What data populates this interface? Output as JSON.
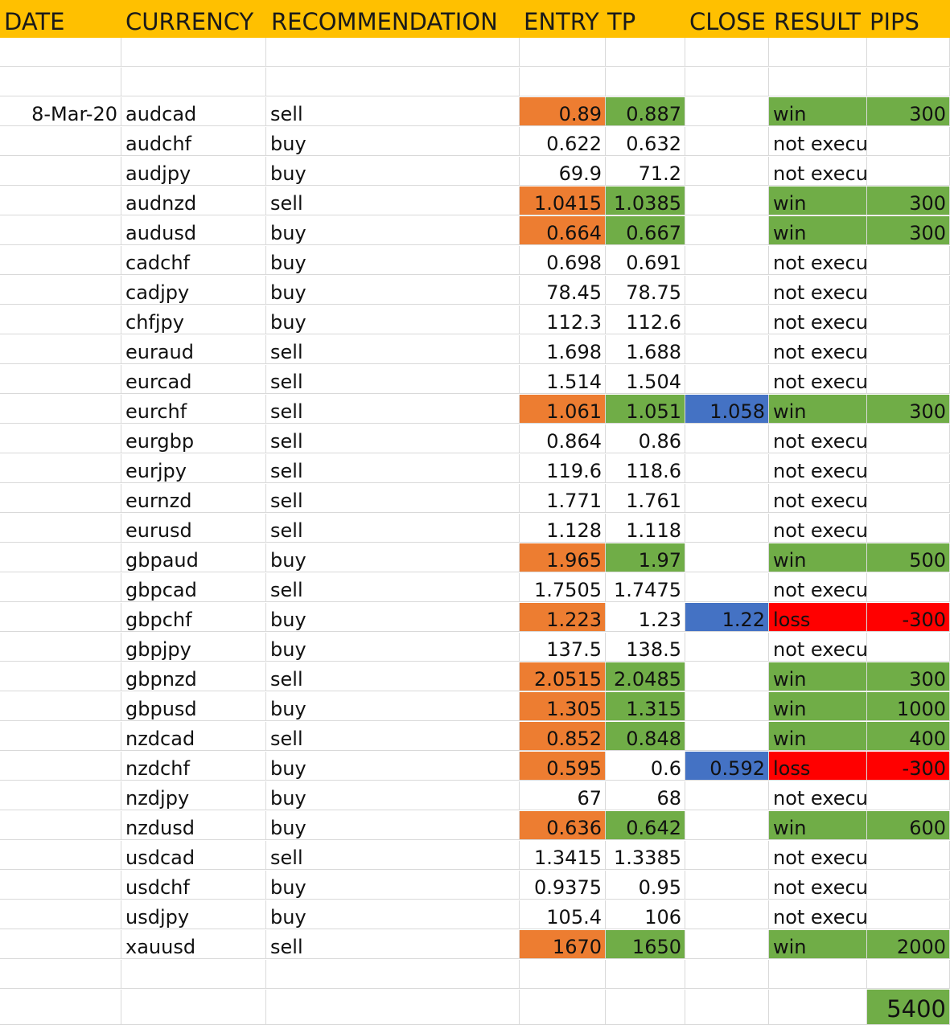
{
  "headers": {
    "date": "DATE",
    "currency": "CURRENCY",
    "recommendation": "RECOMMENDATION",
    "entry": "ENTRY",
    "tp": "TP",
    "close": "CLOSE",
    "result": "RESULT",
    "pips": "PIPS"
  },
  "colors": {
    "header": "#ffc000",
    "entry_fill": "#ed7d31",
    "tp_win_fill": "#70ad47",
    "close_fill": "#4472c4",
    "loss_fill": "#ff0000"
  },
  "trades": [
    {
      "date": "8-Mar-20",
      "currency": "audcad",
      "rec": "sell",
      "entry": "0.89",
      "tp": "0.887",
      "close": "",
      "result": "win",
      "pips": "300"
    },
    {
      "date": "",
      "currency": "audchf",
      "rec": "buy",
      "entry": "0.622",
      "tp": "0.632",
      "close": "",
      "result": "not executed",
      "pips": ""
    },
    {
      "date": "",
      "currency": "audjpy",
      "rec": "buy",
      "entry": "69.9",
      "tp": "71.2",
      "close": "",
      "result": "not executed",
      "pips": ""
    },
    {
      "date": "",
      "currency": "audnzd",
      "rec": "sell",
      "entry": "1.0415",
      "tp": "1.0385",
      "close": "",
      "result": "win",
      "pips": "300"
    },
    {
      "date": "",
      "currency": "audusd",
      "rec": "buy",
      "entry": "0.664",
      "tp": "0.667",
      "close": "",
      "result": "win",
      "pips": "300"
    },
    {
      "date": "",
      "currency": "cadchf",
      "rec": "buy",
      "entry": "0.698",
      "tp": "0.691",
      "close": "",
      "result": "not executed",
      "pips": ""
    },
    {
      "date": "",
      "currency": "cadjpy",
      "rec": "buy",
      "entry": "78.45",
      "tp": "78.75",
      "close": "",
      "result": "not executed",
      "pips": ""
    },
    {
      "date": "",
      "currency": "chfjpy",
      "rec": "buy",
      "entry": "112.3",
      "tp": "112.6",
      "close": "",
      "result": "not executed",
      "pips": ""
    },
    {
      "date": "",
      "currency": "euraud",
      "rec": "sell",
      "entry": "1.698",
      "tp": "1.688",
      "close": "",
      "result": "not executed",
      "pips": ""
    },
    {
      "date": "",
      "currency": "eurcad",
      "rec": "sell",
      "entry": "1.514",
      "tp": "1.504",
      "close": "",
      "result": "not executed",
      "pips": ""
    },
    {
      "date": "",
      "currency": "eurchf",
      "rec": "sell",
      "entry": "1.061",
      "tp": "1.051",
      "close": "1.058",
      "result": "win",
      "pips": "300"
    },
    {
      "date": "",
      "currency": "eurgbp",
      "rec": "sell",
      "entry": "0.864",
      "tp": "0.86",
      "close": "",
      "result": "not executed",
      "pips": ""
    },
    {
      "date": "",
      "currency": "eurjpy",
      "rec": "sell",
      "entry": "119.6",
      "tp": "118.6",
      "close": "",
      "result": "not executed",
      "pips": ""
    },
    {
      "date": "",
      "currency": "eurnzd",
      "rec": "sell",
      "entry": "1.771",
      "tp": "1.761",
      "close": "",
      "result": "not executed",
      "pips": ""
    },
    {
      "date": "",
      "currency": "eurusd",
      "rec": "sell",
      "entry": "1.128",
      "tp": "1.118",
      "close": "",
      "result": "not executed",
      "pips": ""
    },
    {
      "date": "",
      "currency": "gbpaud",
      "rec": "buy",
      "entry": "1.965",
      "tp": "1.97",
      "close": "",
      "result": "win",
      "pips": "500"
    },
    {
      "date": "",
      "currency": "gbpcad",
      "rec": "sell",
      "entry": "1.7505",
      "tp": "1.7475",
      "close": "",
      "result": "not executed",
      "pips": ""
    },
    {
      "date": "",
      "currency": "gbpchf",
      "rec": "buy",
      "entry": "1.223",
      "tp": "1.23",
      "close": "1.22",
      "result": "loss",
      "pips": "-300"
    },
    {
      "date": "",
      "currency": "gbpjpy",
      "rec": "buy",
      "entry": "137.5",
      "tp": "138.5",
      "close": "",
      "result": "not executed",
      "pips": ""
    },
    {
      "date": "",
      "currency": "gbpnzd",
      "rec": "sell",
      "entry": "2.0515",
      "tp": "2.0485",
      "close": "",
      "result": "win",
      "pips": "300"
    },
    {
      "date": "",
      "currency": "gbpusd",
      "rec": "buy",
      "entry": "1.305",
      "tp": "1.315",
      "close": "",
      "result": "win",
      "pips": "1000"
    },
    {
      "date": "",
      "currency": "nzdcad",
      "rec": "sell",
      "entry": "0.852",
      "tp": "0.848",
      "close": "",
      "result": "win",
      "pips": "400"
    },
    {
      "date": "",
      "currency": "nzdchf",
      "rec": "buy",
      "entry": "0.595",
      "tp": "0.6",
      "close": "0.592",
      "result": "loss",
      "pips": "-300"
    },
    {
      "date": "",
      "currency": "nzdjpy",
      "rec": "buy",
      "entry": "67",
      "tp": "68",
      "close": "",
      "result": "not executed",
      "pips": ""
    },
    {
      "date": "",
      "currency": "nzdusd",
      "rec": "buy",
      "entry": "0.636",
      "tp": "0.642",
      "close": "",
      "result": "win",
      "pips": "600"
    },
    {
      "date": "",
      "currency": "usdcad",
      "rec": "sell",
      "entry": "1.3415",
      "tp": "1.3385",
      "close": "",
      "result": "not executed",
      "pips": ""
    },
    {
      "date": "",
      "currency": "usdchf",
      "rec": "buy",
      "entry": "0.9375",
      "tp": "0.95",
      "close": "",
      "result": "not executed",
      "pips": ""
    },
    {
      "date": "",
      "currency": "usdjpy",
      "rec": "buy",
      "entry": "105.4",
      "tp": "106",
      "close": "",
      "result": "not executed",
      "pips": ""
    },
    {
      "date": "",
      "currency": "xauusd",
      "rec": "sell",
      "entry": "1670",
      "tp": "1650",
      "close": "",
      "result": "win",
      "pips": "2000"
    }
  ],
  "total_pips": "5400"
}
